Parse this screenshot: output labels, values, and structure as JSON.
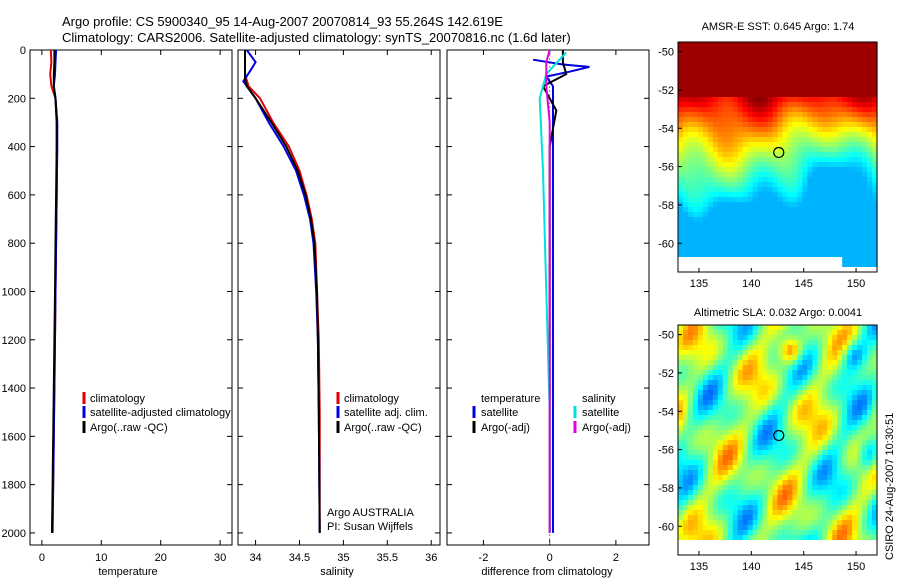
{
  "title": {
    "line1": "Argo profile: CS 5900340_95 14-Aug-2007 20070814_93 55.264S 142.619E",
    "line2": "Climatology: CARS2006. Satellite-adjusted climatology: synTS_20070816.nc (1.6d later)"
  },
  "credit": "CSIRO 24-Aug-2007 10:30:51",
  "colors": {
    "climatology": "#e00000",
    "satellite": "#0000e0",
    "argo": "#000000",
    "satellite_sal": "#00e0e0",
    "argo_adj_sal": "#e000e0"
  },
  "chart_data": [
    {
      "type": "line",
      "name": "temperature-profile",
      "xlabel": "temperature",
      "xlim": [
        -2,
        32
      ],
      "ylim": [
        0,
        2050
      ],
      "y_reversed": true,
      "xticks": [
        0,
        10,
        20,
        30
      ],
      "yticks": [
        0,
        200,
        400,
        600,
        800,
        1000,
        1200,
        1400,
        1600,
        1800,
        2000
      ],
      "legend": [
        "climatology",
        "satellite-adjusted climatology",
        "Argo(..raw -QC)"
      ],
      "series": [
        {
          "name": "climatology",
          "color": "#e00000",
          "points": [
            [
              1.5,
              0
            ],
            [
              1.6,
              50
            ],
            [
              1.4,
              100
            ],
            [
              1.6,
              150
            ],
            [
              2.3,
              200
            ],
            [
              2.5,
              300
            ],
            [
              2.5,
              400
            ],
            [
              2.5,
              600
            ],
            [
              2.4,
              800
            ],
            [
              2.3,
              1000
            ],
            [
              2.2,
              1200
            ],
            [
              2.1,
              1400
            ],
            [
              2.0,
              1600
            ],
            [
              1.9,
              1800
            ],
            [
              1.7,
              2000
            ]
          ]
        },
        {
          "name": "satellite-adjusted climatology",
          "color": "#0000e0",
          "points": [
            [
              2.4,
              0
            ],
            [
              2.3,
              50
            ],
            [
              2.2,
              100
            ],
            [
              2.0,
              150
            ],
            [
              2.3,
              200
            ],
            [
              2.6,
              300
            ],
            [
              2.6,
              400
            ],
            [
              2.5,
              600
            ],
            [
              2.4,
              800
            ],
            [
              2.3,
              1000
            ],
            [
              2.2,
              1200
            ],
            [
              2.1,
              1400
            ],
            [
              2.0,
              1600
            ],
            [
              1.9,
              1800
            ],
            [
              1.8,
              2000
            ]
          ]
        },
        {
          "name": "Argo(..raw -QC)",
          "color": "#000000",
          "points": [
            [
              2.1,
              0
            ],
            [
              2.1,
              50
            ],
            [
              2.0,
              100
            ],
            [
              2.0,
              150
            ],
            [
              2.3,
              200
            ],
            [
              2.5,
              300
            ],
            [
              2.5,
              400
            ],
            [
              2.4,
              600
            ],
            [
              2.3,
              800
            ],
            [
              2.2,
              1000
            ],
            [
              2.1,
              1200
            ],
            [
              2.0,
              1400
            ],
            [
              1.9,
              1600
            ],
            [
              1.8,
              1800
            ],
            [
              1.7,
              2000
            ]
          ]
        }
      ]
    },
    {
      "type": "line",
      "name": "salinity-profile",
      "xlabel": "salinity",
      "xlim": [
        33.8,
        36.1
      ],
      "ylim": [
        0,
        2050
      ],
      "y_reversed": true,
      "xticks": [
        34,
        34.5,
        35,
        35.5,
        36
      ],
      "legend": [
        "climatology",
        "satellite adj. clim.",
        "Argo(..raw -QC)"
      ],
      "annotations": [
        "Argo AUSTRALIA",
        "PI: Susan Wijffels"
      ],
      "series": [
        {
          "name": "climatology",
          "color": "#e00000",
          "points": [
            [
              33.88,
              0
            ],
            [
              33.88,
              50
            ],
            [
              33.88,
              100
            ],
            [
              33.92,
              150
            ],
            [
              34.05,
              200
            ],
            [
              34.2,
              300
            ],
            [
              34.38,
              400
            ],
            [
              34.5,
              500
            ],
            [
              34.58,
              600
            ],
            [
              34.64,
              700
            ],
            [
              34.68,
              800
            ],
            [
              34.7,
              1000
            ],
            [
              34.72,
              1200
            ],
            [
              34.73,
              1500
            ],
            [
              34.73,
              2000
            ]
          ]
        },
        {
          "name": "satellite adj. clim.",
          "color": "#0000e0",
          "points": [
            [
              33.9,
              0
            ],
            [
              34.0,
              50
            ],
            [
              33.95,
              80
            ],
            [
              33.86,
              130
            ],
            [
              34.0,
              200
            ],
            [
              34.15,
              300
            ],
            [
              34.32,
              400
            ],
            [
              34.46,
              500
            ],
            [
              34.55,
              600
            ],
            [
              34.62,
              700
            ],
            [
              34.66,
              800
            ],
            [
              34.69,
              1000
            ],
            [
              34.71,
              1200
            ],
            [
              34.72,
              1500
            ],
            [
              34.73,
              2000
            ]
          ]
        },
        {
          "name": "Argo(..raw -QC)",
          "color": "#000000",
          "points": [
            [
              33.88,
              0
            ],
            [
              33.88,
              50
            ],
            [
              33.88,
              120
            ],
            [
              33.9,
              150
            ],
            [
              34.0,
              200
            ],
            [
              34.18,
              300
            ],
            [
              34.35,
              400
            ],
            [
              34.48,
              500
            ],
            [
              34.57,
              600
            ],
            [
              34.63,
              700
            ],
            [
              34.67,
              800
            ],
            [
              34.7,
              1000
            ],
            [
              34.71,
              1200
            ],
            [
              34.72,
              1500
            ],
            [
              34.73,
              2000
            ]
          ]
        }
      ]
    },
    {
      "type": "line",
      "name": "difference-profile",
      "xlabel": "difference from climatology",
      "xlim": [
        -3.1,
        3.0
      ],
      "ylim": [
        0,
        2050
      ],
      "y_reversed": true,
      "xticks": [
        -2,
        0,
        2
      ],
      "legend_temperature": [
        "temperature",
        "satellite",
        "Argo(-adj)"
      ],
      "legend_salinity": [
        "salinity",
        "satellite",
        "Argo(-adj)"
      ],
      "series": [
        {
          "name": "temperature satellite",
          "color": "#0000e0",
          "points": [
            [
              -0.5,
              40
            ],
            [
              0.4,
              60
            ],
            [
              1.2,
              70
            ],
            [
              0.6,
              90
            ],
            [
              -0.1,
              110
            ],
            [
              0.1,
              150
            ],
            [
              0.1,
              300
            ],
            [
              0.1,
              600
            ],
            [
              0.1,
              1000
            ],
            [
              0.1,
              1500
            ],
            [
              0.1,
              2000
            ]
          ]
        },
        {
          "name": "temperature Argo(-adj)",
          "color": "#000000",
          "points": [
            [
              0.4,
              0
            ],
            [
              0.4,
              50
            ],
            [
              0.5,
              100
            ],
            [
              -0.2,
              150
            ],
            [
              0.2,
              250
            ],
            [
              0.0,
              400
            ],
            [
              0.0,
              700
            ],
            [
              0.0,
              1000
            ],
            [
              0.0,
              1500
            ],
            [
              0.0,
              2000
            ]
          ]
        },
        {
          "name": "salinity satellite",
          "color": "#00e0e0",
          "points": [
            [
              0.5,
              10
            ],
            [
              0.3,
              40
            ],
            [
              -0.1,
              100
            ],
            [
              -0.3,
              200
            ],
            [
              -0.2,
              500
            ],
            [
              -0.1,
              1000
            ],
            [
              0.0,
              1500
            ],
            [
              0.0,
              2000
            ]
          ]
        },
        {
          "name": "salinity Argo(-adj)",
          "color": "#e000e0",
          "points": [
            [
              0.0,
              0
            ],
            [
              -0.1,
              50
            ],
            [
              -0.1,
              150
            ],
            [
              0.0,
              300
            ],
            [
              0.0,
              600
            ],
            [
              0.0,
              1000
            ],
            [
              0.0,
              1500
            ],
            [
              0.0,
              2000
            ]
          ]
        }
      ]
    },
    {
      "type": "heatmap",
      "name": "sst-map",
      "title": "AMSR-E SST: 0.645 Argo: 1.74",
      "xticks": [
        135,
        140,
        145,
        150
      ],
      "yticks": [
        -50,
        -52,
        -54,
        -56,
        -58,
        -60
      ],
      "xlim": [
        133,
        152
      ],
      "ylim": [
        -61.5,
        -49.5
      ],
      "marker": [
        142.619,
        -55.264
      ]
    },
    {
      "type": "heatmap",
      "name": "sla-map",
      "title": "Altimetric SLA: 0.032 Argo: 0.0041",
      "xticks": [
        135,
        140,
        145,
        150
      ],
      "yticks": [
        -50,
        -52,
        -54,
        -56,
        -58,
        -60
      ],
      "xlim": [
        133,
        152
      ],
      "ylim": [
        -61.5,
        -49.5
      ],
      "marker": [
        142.619,
        -55.264
      ]
    }
  ]
}
